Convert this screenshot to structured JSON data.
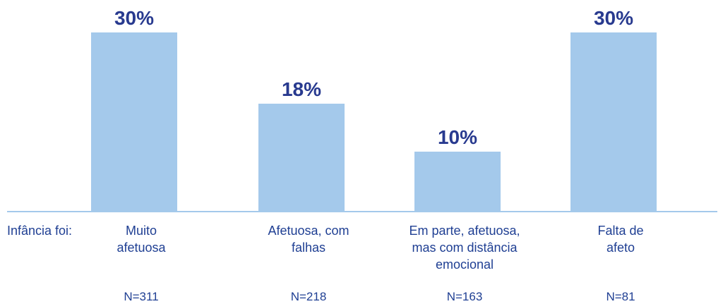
{
  "chart_data": {
    "type": "bar",
    "categories": [
      "Muito afetuosa",
      "Afetuosa, com falhas",
      "Em parte, afetuosa, mas com distância emocional",
      "Falta de afeto"
    ],
    "values": [
      30,
      18,
      10,
      30
    ],
    "value_labels": [
      "30%",
      "18%",
      "10%",
      "30%"
    ],
    "sample_labels": [
      "N=311",
      "N=218",
      "N=163",
      "N=81"
    ],
    "row_label": "Infância foi:",
    "color": "#a4c9eb"
  }
}
